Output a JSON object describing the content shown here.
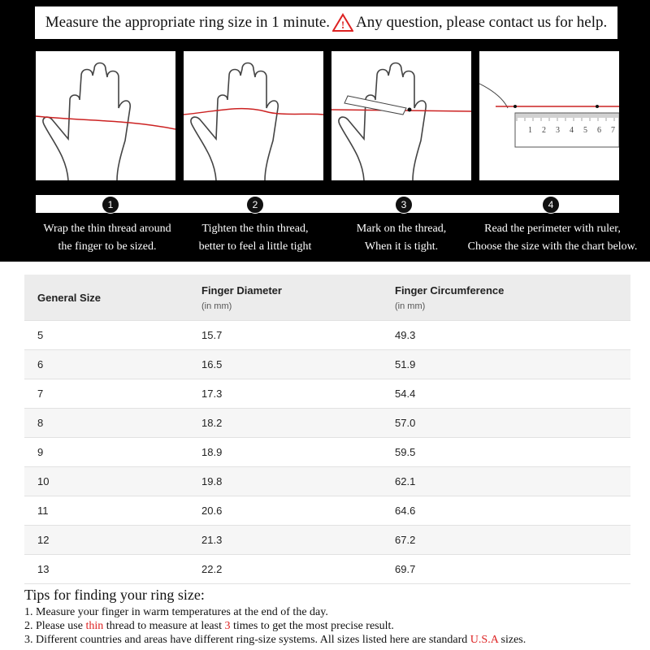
{
  "header": {
    "title_before": "Measure the appropriate ring size in 1 minute.",
    "warning_icon": "!",
    "title_after": "Any question, please contact us for help."
  },
  "ruler_labels": [
    "1",
    "2",
    "3",
    "4",
    "5",
    "6",
    "7"
  ],
  "steps": [
    {
      "number": "1",
      "line1": "Wrap the thin thread around",
      "line2": "the finger to be sized."
    },
    {
      "number": "2",
      "line1": "Tighten the thin thread,",
      "line2": "better to feel a little tight"
    },
    {
      "number": "3",
      "line1": "Mark on the thread,",
      "line2": "When it is tight."
    },
    {
      "number": "4",
      "line1": "Read the perimeter with ruler,",
      "line2": "Choose the size with the chart below."
    }
  ],
  "table": {
    "headers": [
      {
        "title": "General Size"
      },
      {
        "title": "Finger Diameter",
        "unit": "(in mm)"
      },
      {
        "title": "Finger Circumference",
        "unit": "(in mm)"
      }
    ],
    "rows": [
      [
        "5",
        "15.7",
        "49.3"
      ],
      [
        "6",
        "16.5",
        "51.9"
      ],
      [
        "7",
        "17.3",
        "54.4"
      ],
      [
        "8",
        "18.2",
        "57.0"
      ],
      [
        "9",
        "18.9",
        "59.5"
      ],
      [
        "10",
        "19.8",
        "62.1"
      ],
      [
        "11",
        "20.6",
        "64.6"
      ],
      [
        "12",
        "21.3",
        "67.2"
      ],
      [
        "13",
        "22.2",
        "69.7"
      ]
    ]
  },
  "tips": {
    "title": "Tips for finding your ring size:",
    "items": [
      [
        "1. Measure your finger in warm temperatures at the end of the day."
      ],
      [
        "2. Please use ",
        "thin",
        " thread to measure at least ",
        "3",
        " times to get the most precise result."
      ],
      [
        "3. Different countries and areas have different ring-size systems. All sizes listed here are standard ",
        "U.S.A",
        " sizes."
      ]
    ]
  }
}
